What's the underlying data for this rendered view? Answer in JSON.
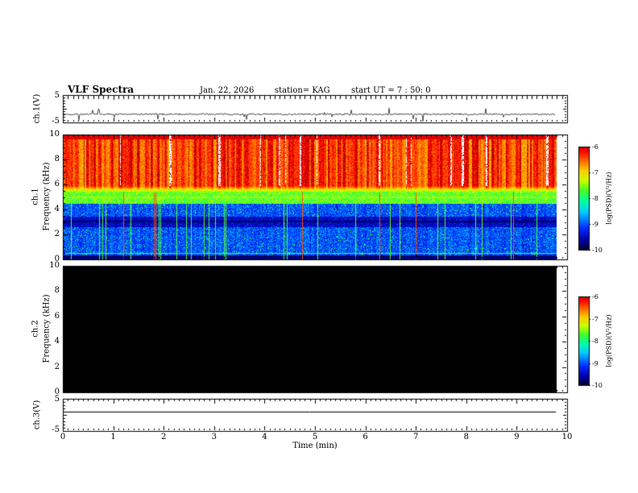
{
  "header": {
    "title": "VLF Spectra",
    "date": "Jan. 22, 2026",
    "station": "station= KAG",
    "start_ut": "start UT =  7 : 50: 0"
  },
  "panels": {
    "ch1_strip": {
      "label": "ch.1(V)",
      "y_ticks": [
        "5",
        "-5"
      ]
    },
    "ch1_spec": {
      "label_ch": "ch.1",
      "label_axis": "Frequency (kHz)",
      "y_ticks": [
        "0",
        "2",
        "4",
        "6",
        "8",
        "10"
      ]
    },
    "ch2_spec": {
      "label_ch": "ch.2",
      "label_axis": "Frequency (kHz)",
      "y_ticks": [
        "0",
        "2",
        "4",
        "6",
        "8",
        "10"
      ]
    },
    "ch3_strip": {
      "label": "ch.3(V)",
      "y_ticks": [
        "5",
        "-5"
      ]
    }
  },
  "x_axis": {
    "label": "Time (min)",
    "ticks": [
      "0",
      "1",
      "2",
      "3",
      "4",
      "5",
      "6",
      "7",
      "8",
      "9",
      "10"
    ]
  },
  "colorbar": {
    "ticks": [
      "-6",
      "-7",
      "-8",
      "-9",
      "-10"
    ],
    "unit": "log(PSD)(V²/Hz)"
  },
  "chart_data": [
    {
      "type": "line",
      "title": "ch.1(V) waveform strip",
      "xlabel": "Time (min)",
      "ylabel": "ch.1(V)",
      "x_range": [
        0,
        10
      ],
      "y_range": [
        -5,
        5
      ],
      "description": "Noisy waveform riding near -2 V with frequent small impulsive spikes of about ±1 to ±2 V and one larger negative spike near t ≈ 7.3 min; data extends to about 9.8 min."
    },
    {
      "type": "heatmap",
      "title": "ch.1 VLF spectrogram",
      "xlabel": "Time (min)",
      "ylabel": "Frequency (kHz)",
      "x_range": [
        0,
        10
      ],
      "y_range": [
        0,
        10
      ],
      "colorbar_label": "log(PSD)(V^2/Hz)",
      "colorbar_range": [
        -10,
        -6
      ],
      "colorbar_tick_values": [
        -6,
        -7,
        -8,
        -9,
        -10
      ],
      "description": "Intense broadband emission (red, PSD near -6) from ~6 to 10 kHz with dense vertical striations and white saturated gaps; yellow-green transition band 4.5-6 kHz; blue background (PSD near -9 to -10) below 4.5 kHz with cyan/green speckle, sparse bright green and thin red vertical streaks, a dark near-black absorption band around 2.6-3.4 kHz with a black line near 3 kHz, and a dark band at the bottom edge; data extends to about 9.8 min."
    },
    {
      "type": "heatmap",
      "title": "ch.2 VLF spectrogram",
      "xlabel": "Time (min)",
      "ylabel": "Frequency (kHz)",
      "x_range": [
        0,
        10
      ],
      "y_range": [
        0,
        10
      ],
      "colorbar_label": "log(PSD)(V^2/Hz)",
      "colorbar_range": [
        -10,
        -6
      ],
      "colorbar_tick_values": [
        -6,
        -7,
        -8,
        -9,
        -10
      ],
      "description": "No signal: entire panel at or below the bottom of the color scale (solid black) out to about 9.8 min."
    },
    {
      "type": "line",
      "title": "ch.3(V) waveform strip",
      "xlabel": "Time (min)",
      "ylabel": "ch.3(V)",
      "x_range": [
        0,
        10
      ],
      "y_range": [
        -5,
        5
      ],
      "description": "Flat constant trace at about +1 V across the whole record (to ~9.8 min)."
    }
  ]
}
